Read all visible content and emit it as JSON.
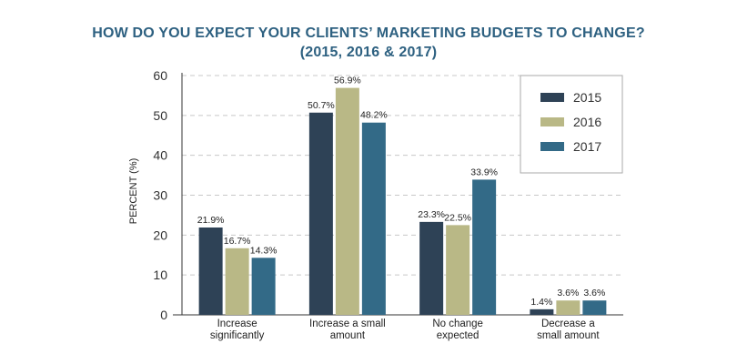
{
  "chart_data": {
    "type": "bar",
    "title": "HOW DO YOU EXPECT YOUR CLIENTS’ MARKETING BUDGETS TO CHANGE?",
    "subtitle": "(2015, 2016 & 2017)",
    "xlabel": "",
    "ylabel": "PERCENT (%)",
    "ylim": [
      0,
      60
    ],
    "yticks": [
      "0",
      "10",
      "20",
      "30",
      "40",
      "50",
      "60"
    ],
    "grid": true,
    "legend_position": "top-right",
    "categories": [
      [
        "Increase",
        "significantly"
      ],
      [
        "Increase a small",
        "amount"
      ],
      [
        "No change",
        "expected"
      ],
      [
        "Decrease a",
        "small amount"
      ]
    ],
    "series": [
      {
        "name": "2015",
        "color": "#2e4256",
        "values": [
          21.9,
          50.7,
          23.3,
          1.4
        ],
        "labels": [
          "21.9%",
          "50.7%",
          "23.3%",
          "1.4%"
        ]
      },
      {
        "name": "2016",
        "color": "#b9b886",
        "values": [
          16.7,
          56.9,
          22.5,
          3.6
        ],
        "labels": [
          "16.7%",
          "56.9%",
          "22.5%",
          "3.6%"
        ]
      },
      {
        "name": "2017",
        "color": "#336a87",
        "values": [
          14.3,
          48.2,
          33.9,
          3.6
        ],
        "labels": [
          "14.3%",
          "48.2%",
          "33.9%",
          "3.6%"
        ]
      }
    ]
  }
}
